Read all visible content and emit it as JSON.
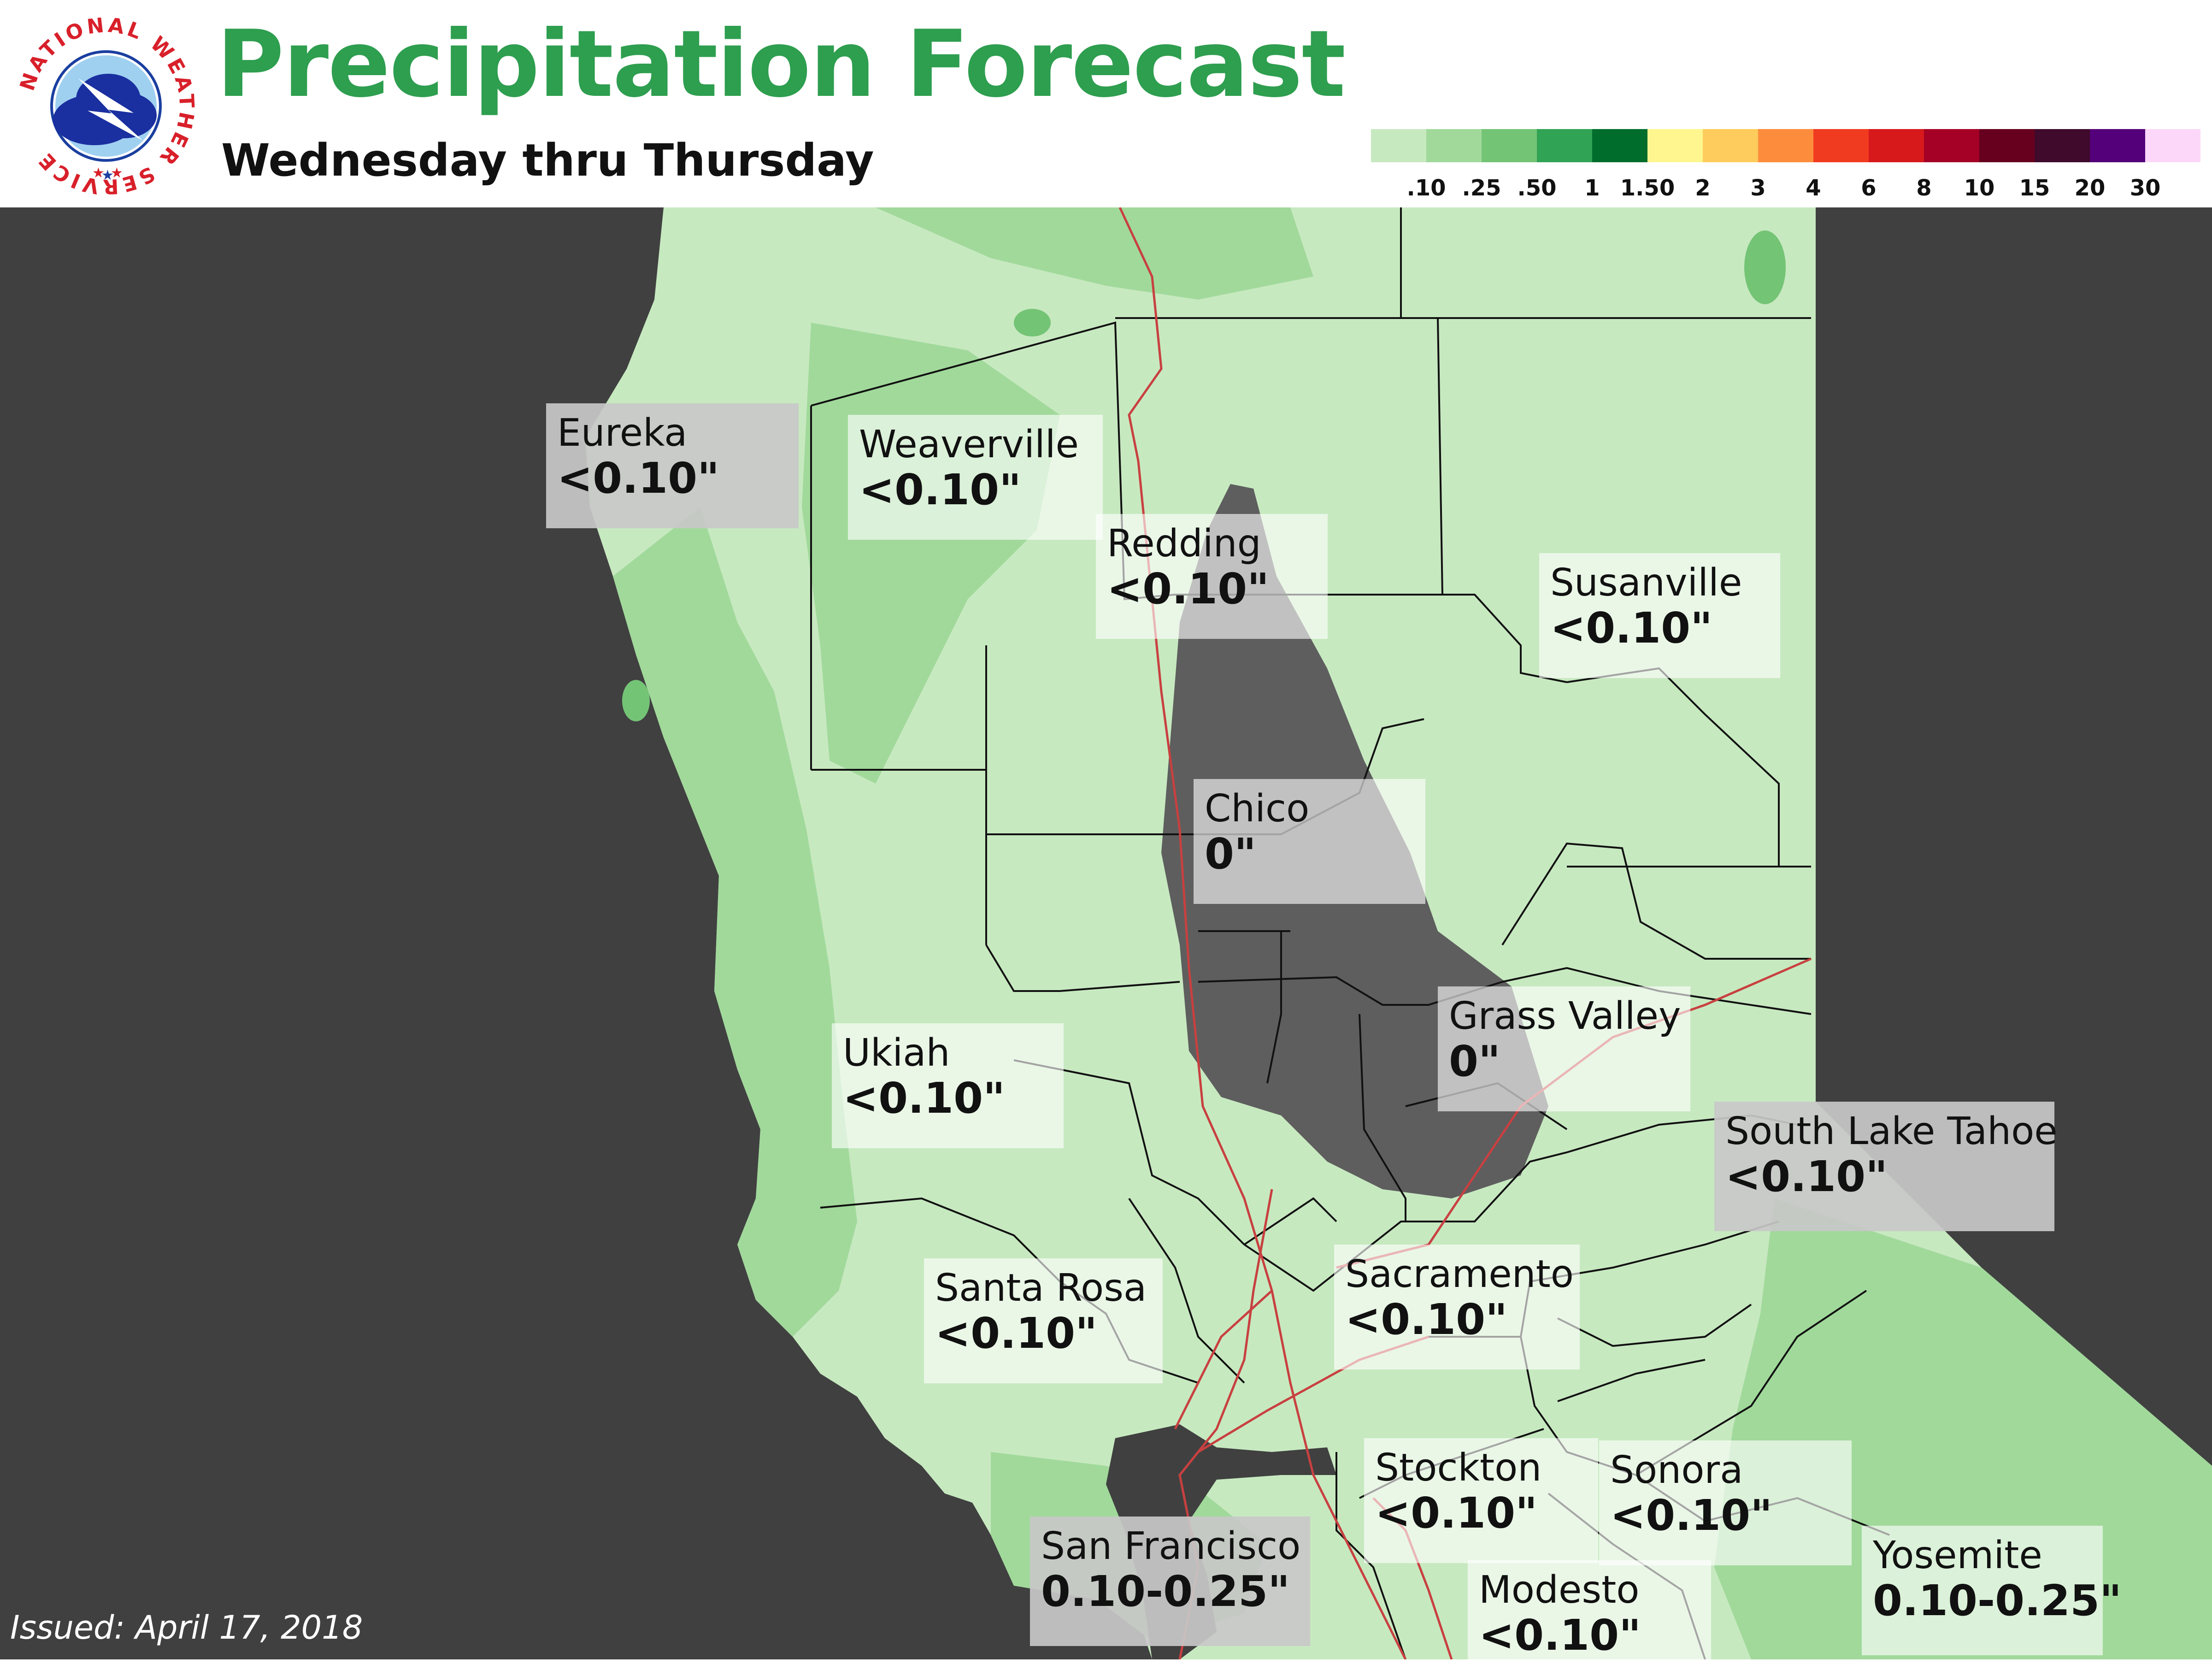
{
  "header": {
    "title": "Precipitation Forecast",
    "subtitle": "Wednesday thru Thursday",
    "logo_text": "NATIONAL WEATHER SERVICE"
  },
  "legend": {
    "entries": [
      {
        "label": ".10",
        "color": "#c7e9c0"
      },
      {
        "label": ".25",
        "color": "#a1d99b"
      },
      {
        "label": ".50",
        "color": "#74c476"
      },
      {
        "label": "1",
        "color": "#31a354"
      },
      {
        "label": "1.50",
        "color": "#006d2c"
      },
      {
        "label": "2",
        "color": "#fff68f"
      },
      {
        "label": "3",
        "color": "#fecc5c"
      },
      {
        "label": "4",
        "color": "#fd8d3c"
      },
      {
        "label": "6",
        "color": "#f03b20"
      },
      {
        "label": "8",
        "color": "#d7191c"
      },
      {
        "label": "10",
        "color": "#a50026"
      },
      {
        "label": "15",
        "color": "#67001f"
      },
      {
        "label": "20",
        "color": "#3f0a2b"
      },
      {
        "label": "30",
        "color": "#54007a"
      },
      {
        "label": "",
        "color": "#fdd7fa"
      }
    ]
  },
  "colors": {
    "ocean": "#404040",
    "no_precip": "#5e5e5e",
    "light_green": "#c7e9c0",
    "medium_green": "#a1d99b",
    "dark_green": "#74c476",
    "title_green": "#2e9e4f",
    "highway": "#c84040",
    "county_line": "#111111"
  },
  "cities": [
    {
      "name": "Eureka",
      "value": "<0.10\""
    },
    {
      "name": "Weaverville",
      "value": "<0.10\""
    },
    {
      "name": "Redding",
      "value": "<0.10\""
    },
    {
      "name": "Susanville",
      "value": "<0.10\""
    },
    {
      "name": "Chico",
      "value": "0\""
    },
    {
      "name": "Grass Valley",
      "value": "0\""
    },
    {
      "name": "Ukiah",
      "value": "<0.10\""
    },
    {
      "name": "South Lake Tahoe",
      "value": "<0.10\""
    },
    {
      "name": "Santa Rosa",
      "value": "<0.10\""
    },
    {
      "name": "Sacramento",
      "value": "<0.10\""
    },
    {
      "name": "Stockton",
      "value": "<0.10\""
    },
    {
      "name": "Sonora",
      "value": "<0.10\""
    },
    {
      "name": "San Francisco",
      "value": "0.10-0.25\""
    },
    {
      "name": "Modesto",
      "value": "<0.10\""
    },
    {
      "name": "Yosemite",
      "value": "0.10-0.25\""
    }
  ],
  "footer": {
    "issued": "Issued: April 17, 2018"
  }
}
